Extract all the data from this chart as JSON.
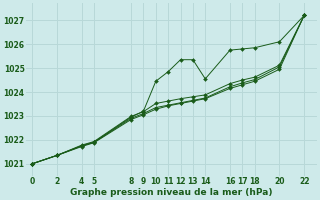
{
  "title": "Graphe pression niveau de la mer (hPa)",
  "bg_color": "#ceeaea",
  "grid_color": "#b8d8d8",
  "line_color": "#1a5c1a",
  "marker_color": "#1a5c1a",
  "xlim": [
    -0.5,
    23
  ],
  "ylim": [
    1020.5,
    1027.7
  ],
  "xticks": [
    0,
    2,
    4,
    5,
    8,
    9,
    10,
    11,
    12,
    13,
    14,
    16,
    17,
    18,
    20,
    22
  ],
  "yticks": [
    1021,
    1022,
    1023,
    1024,
    1025,
    1026,
    1027
  ],
  "series": [
    {
      "x": [
        0,
        2,
        4,
        5,
        8,
        9,
        10,
        11,
        12,
        13,
        14,
        16,
        17,
        18,
        20,
        22
      ],
      "y": [
        1021.0,
        1021.35,
        1021.75,
        1021.9,
        1022.95,
        1023.2,
        1024.45,
        1024.85,
        1025.35,
        1025.35,
        1024.55,
        1025.75,
        1025.8,
        1025.85,
        1026.1,
        1027.2
      ]
    },
    {
      "x": [
        0,
        2,
        4,
        5,
        8,
        9,
        10,
        11,
        12,
        13,
        14,
        16,
        17,
        18,
        20,
        22
      ],
      "y": [
        1021.0,
        1021.35,
        1021.72,
        1021.88,
        1022.85,
        1023.05,
        1023.28,
        1023.42,
        1023.52,
        1023.62,
        1023.72,
        1024.15,
        1024.3,
        1024.45,
        1024.95,
        1027.2
      ]
    },
    {
      "x": [
        0,
        2,
        4,
        5,
        8,
        9,
        10,
        11,
        12,
        13,
        14,
        16,
        17,
        18,
        20,
        22
      ],
      "y": [
        1021.0,
        1021.35,
        1021.75,
        1021.9,
        1022.9,
        1023.1,
        1023.35,
        1023.45,
        1023.55,
        1023.65,
        1023.75,
        1024.22,
        1024.38,
        1024.52,
        1025.05,
        1027.2
      ]
    },
    {
      "x": [
        0,
        2,
        4,
        5,
        8,
        9,
        10,
        11,
        12,
        13,
        14,
        16,
        17,
        18,
        20,
        22
      ],
      "y": [
        1021.0,
        1021.35,
        1021.78,
        1021.93,
        1022.98,
        1023.18,
        1023.52,
        1023.62,
        1023.72,
        1023.8,
        1023.88,
        1024.35,
        1024.5,
        1024.62,
        1025.12,
        1027.2
      ]
    }
  ],
  "ylabel_fontsize": 5.5,
  "xlabel_fontsize": 6.5,
  "tick_labelsize": 5.5
}
